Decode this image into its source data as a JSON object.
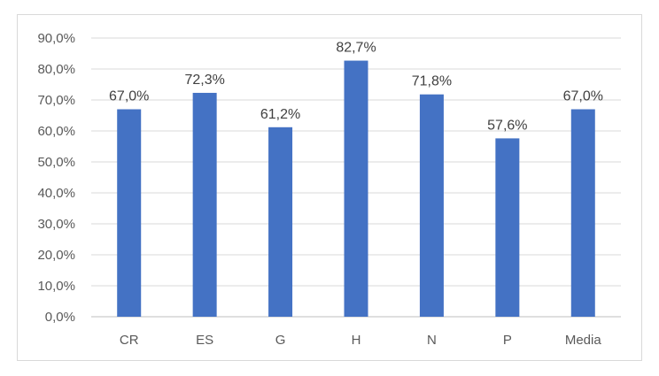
{
  "chart_data": {
    "type": "bar",
    "title": "",
    "xlabel": "",
    "ylabel": "",
    "categories": [
      "CR",
      "ES",
      "G",
      "H",
      "N",
      "P",
      "Media"
    ],
    "values": [
      67.0,
      72.3,
      61.2,
      82.7,
      71.8,
      57.6,
      67.0
    ],
    "data_labels": [
      "67,0%",
      "72,3%",
      "61,2%",
      "82,7%",
      "71,8%",
      "57,6%",
      "67,0%"
    ],
    "ylim": [
      0,
      90
    ],
    "y_ticks": [
      0,
      10,
      20,
      30,
      40,
      50,
      60,
      70,
      80,
      90
    ],
    "y_tick_labels": [
      "0,0%",
      "10,0%",
      "20,0%",
      "30,0%",
      "40,0%",
      "50,0%",
      "60,0%",
      "70,0%",
      "80,0%",
      "90,0%"
    ],
    "grid": true,
    "legend": "none",
    "bar_color": "#4472c4",
    "grid_color": "#d9d9d9"
  }
}
